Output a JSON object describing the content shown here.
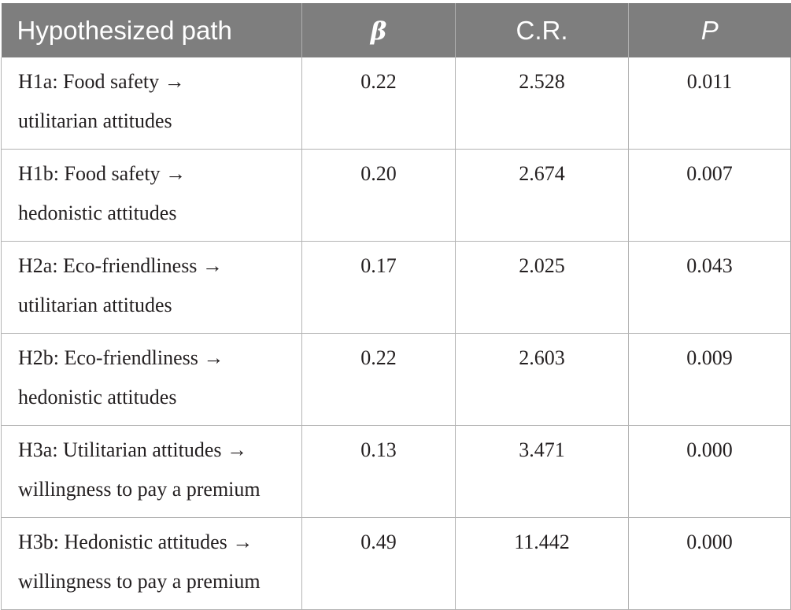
{
  "table": {
    "headers": [
      "Hypothesized path",
      "β",
      "C.R.",
      "P"
    ],
    "rows": [
      {
        "path_line1": "H1a: Food safety →",
        "path_line2": "utilitarian attitudes",
        "beta": "0.22",
        "cr": "2.528",
        "p": "0.011"
      },
      {
        "path_line1": "H1b: Food safety →",
        "path_line2": "hedonistic attitudes",
        "beta": "0.20",
        "cr": "2.674",
        "p": "0.007"
      },
      {
        "path_line1": "H2a: Eco-friendliness →",
        "path_line2": "utilitarian attitudes",
        "beta": "0.17",
        "cr": "2.025",
        "p": "0.043"
      },
      {
        "path_line1": "H2b: Eco-friendliness →",
        "path_line2": "hedonistic attitudes",
        "beta": "0.22",
        "cr": "2.603",
        "p": "0.009"
      },
      {
        "path_line1": "H3a: Utilitarian attitudes →",
        "path_line2": "willingness to pay a premium",
        "beta": "0.13",
        "cr": "3.471",
        "p": "0.000"
      },
      {
        "path_line1": "H3b: Hedonistic attitudes →",
        "path_line2": "willingness to pay a premium",
        "beta": "0.49",
        "cr": "11.442",
        "p": "0.000"
      }
    ]
  },
  "colors": {
    "header_background": "#7e7e7e",
    "header_text": "#ffffff",
    "cell_border": "#b3b3b3",
    "body_text": "#231f20"
  }
}
